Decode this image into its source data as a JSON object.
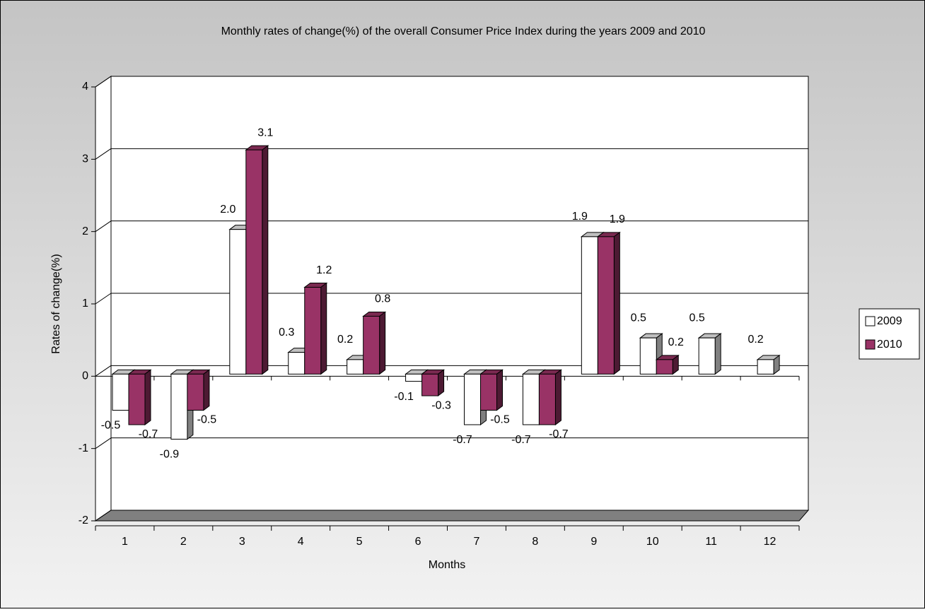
{
  "chart_data": {
    "type": "bar3d",
    "title": "Monthly rates of change(%) of the overall Consumer Price Index during the years 2009 and 2010",
    "x_label": "Months",
    "y_label": "Rates of change(%)",
    "categories": [
      "1",
      "2",
      "3",
      "4",
      "5",
      "6",
      "7",
      "8",
      "9",
      "10",
      "11",
      "12"
    ],
    "series": [
      {
        "name": "2009",
        "color": "#ffffff",
        "values": [
          -0.5,
          -0.9,
          2.0,
          0.3,
          0.2,
          -0.1,
          -0.7,
          -0.7,
          1.9,
          0.5,
          0.5,
          0.2
        ],
        "value_labels": [
          "-0.5",
          "-0.9",
          "2.0",
          "0.3",
          "0.2",
          "-0.1",
          "-0.7",
          "-0.7",
          "1.9",
          "0.5",
          "0.5",
          "0.2"
        ]
      },
      {
        "name": "2010",
        "color": "#993366",
        "values": [
          -0.7,
          -0.5,
          3.1,
          1.2,
          0.8,
          -0.3,
          -0.5,
          -0.7,
          1.9,
          0.2,
          null,
          null
        ],
        "value_labels": [
          "-0.7",
          "-0.5",
          "3.1",
          "1.2",
          "0.8",
          "-0.3",
          "-0.5",
          "-0.7",
          "1.9",
          "0.2",
          null,
          null
        ]
      }
    ],
    "ylim": [
      -2,
      4
    ],
    "yticks": [
      -2,
      -1,
      0,
      1,
      2,
      3,
      4
    ],
    "grid": true,
    "legend": "right"
  }
}
